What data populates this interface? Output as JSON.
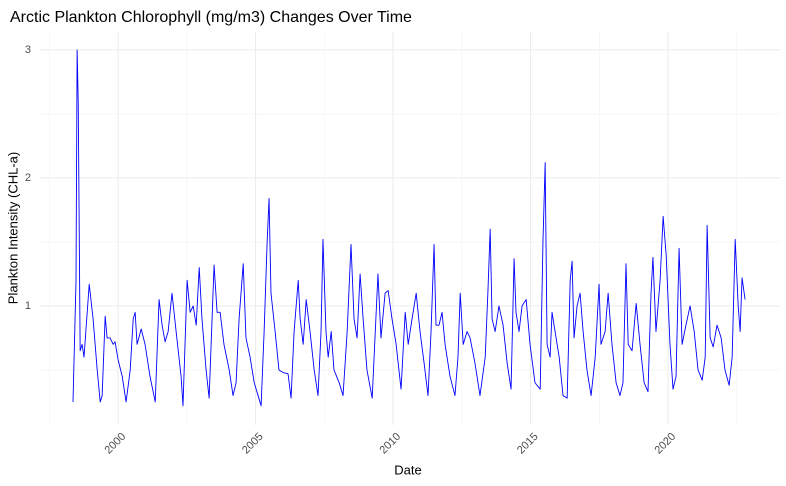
{
  "chart_data": {
    "type": "line",
    "title": "Arctic Plankton Chlorophyll (mg/m3) Changes Over Time",
    "x_label": "Date",
    "y_label": "Plankton Intensity (CHL-a)",
    "color": "#0000ff",
    "grid": true,
    "xlim": [
      1997.16,
      2024.07
    ],
    "xticks": [
      2000,
      2005,
      2010,
      2015,
      2020
    ],
    "x_minor_ticks": [
      1997.5,
      2002.5,
      2007.5,
      2012.5,
      2017.5,
      2022.5
    ],
    "ylim": [
      0.07,
      3.14
    ],
    "yticks": [
      1,
      2,
      3
    ],
    "y_minor_ticks": [
      0.5,
      1.5,
      2.5
    ],
    "x": [
      1998.36,
      1998.47,
      1998.51,
      1998.55,
      1998.62,
      1998.69,
      1998.76,
      1998.95,
      1999.09,
      1999.24,
      1999.35,
      1999.42,
      1999.53,
      1999.6,
      1999.71,
      1999.82,
      1999.89,
      2000,
      2000.15,
      2000.29,
      2000.44,
      2000.55,
      2000.62,
      2000.69,
      2000.84,
      2000.98,
      2001.16,
      2001.35,
      2001.49,
      2001.6,
      2001.71,
      2001.82,
      2001.96,
      2002.11,
      2002.29,
      2002.36,
      2002.51,
      2002.62,
      2002.73,
      2002.84,
      2002.95,
      2003.05,
      2003.2,
      2003.31,
      2003.49,
      2003.6,
      2003.71,
      2003.85,
      2004.04,
      2004.18,
      2004.29,
      2004.4,
      2004.55,
      2004.65,
      2004.8,
      2004.95,
      2005.09,
      2005.2,
      2005.31,
      2005.42,
      2005.49,
      2005.56,
      2005.71,
      2005.85,
      2006.0,
      2006.18,
      2006.29,
      2006.4,
      2006.55,
      2006.62,
      2006.73,
      2006.84,
      2006.98,
      2007.13,
      2007.27,
      2007.38,
      2007.45,
      2007.56,
      2007.64,
      2007.75,
      2007.85,
      2008.04,
      2008.18,
      2008.33,
      2008.47,
      2008.58,
      2008.69,
      2008.8,
      2008.91,
      2009.05,
      2009.24,
      2009.45,
      2009.56,
      2009.71,
      2009.82,
      2009.96,
      2010.11,
      2010.29,
      2010.44,
      2010.55,
      2010.69,
      2010.84,
      2010.98,
      2011.13,
      2011.27,
      2011.38,
      2011.49,
      2011.56,
      2011.67,
      2011.78,
      2011.89,
      2012.07,
      2012.25,
      2012.36,
      2012.44,
      2012.55,
      2012.69,
      2012.8,
      2012.98,
      2013.16,
      2013.35,
      2013.45,
      2013.53,
      2013.6,
      2013.71,
      2013.85,
      2014.0,
      2014.15,
      2014.29,
      2014.4,
      2014.47,
      2014.58,
      2014.69,
      2014.84,
      2014.98,
      2015.16,
      2015.35,
      2015.45,
      2015.53,
      2015.6,
      2015.71,
      2015.78,
      2015.89,
      2016.04,
      2016.18,
      2016.33,
      2016.44,
      2016.51,
      2016.58,
      2016.69,
      2016.8,
      2016.91,
      2017.05,
      2017.2,
      2017.35,
      2017.49,
      2017.56,
      2017.71,
      2017.82,
      2017.96,
      2018.11,
      2018.25,
      2018.36,
      2018.47,
      2018.55,
      2018.69,
      2018.84,
      2018.98,
      2019.13,
      2019.27,
      2019.38,
      2019.45,
      2019.56,
      2019.71,
      2019.82,
      2019.93,
      2020.07,
      2020.18,
      2020.29,
      2020.4,
      2020.51,
      2020.65,
      2020.8,
      2020.95,
      2021.09,
      2021.24,
      2021.35,
      2021.42,
      2021.53,
      2021.64,
      2021.78,
      2021.93,
      2022.07,
      2022.22,
      2022.33,
      2022.44,
      2022.55,
      2022.62,
      2022.69,
      2022.8
    ],
    "values": [
      0.25,
      1.2,
      3.0,
      2.6,
      0.65,
      0.7,
      0.6,
      1.17,
      0.9,
      0.5,
      0.25,
      0.3,
      0.92,
      0.75,
      0.75,
      0.7,
      0.72,
      0.58,
      0.45,
      0.25,
      0.5,
      0.9,
      0.95,
      0.7,
      0.82,
      0.7,
      0.45,
      0.25,
      1.05,
      0.85,
      0.72,
      0.8,
      1.1,
      0.8,
      0.45,
      0.22,
      1.2,
      0.95,
      1.0,
      0.85,
      1.3,
      0.9,
      0.5,
      0.28,
      1.32,
      0.95,
      0.95,
      0.7,
      0.5,
      0.3,
      0.4,
      0.9,
      1.33,
      0.75,
      0.6,
      0.4,
      0.3,
      0.22,
      0.8,
      1.5,
      1.84,
      1.1,
      0.8,
      0.5,
      0.48,
      0.47,
      0.28,
      0.8,
      1.2,
      0.9,
      0.7,
      1.05,
      0.8,
      0.5,
      0.3,
      0.8,
      1.52,
      0.8,
      0.6,
      0.8,
      0.5,
      0.4,
      0.3,
      0.8,
      1.48,
      0.9,
      0.75,
      1.25,
      0.9,
      0.5,
      0.28,
      1.25,
      0.75,
      1.1,
      1.12,
      0.9,
      0.7,
      0.35,
      0.95,
      0.7,
      0.9,
      1.1,
      0.8,
      0.55,
      0.3,
      0.8,
      1.48,
      0.85,
      0.85,
      0.95,
      0.7,
      0.45,
      0.3,
      0.6,
      1.1,
      0.7,
      0.8,
      0.75,
      0.55,
      0.3,
      0.6,
      1.12,
      1.6,
      0.9,
      0.8,
      1.0,
      0.85,
      0.55,
      0.35,
      1.37,
      0.95,
      0.8,
      1.0,
      1.05,
      0.7,
      0.4,
      0.35,
      1.5,
      2.12,
      0.7,
      0.6,
      0.95,
      0.8,
      0.6,
      0.3,
      0.28,
      1.2,
      1.35,
      0.75,
      1.0,
      1.1,
      0.8,
      0.5,
      0.3,
      0.6,
      1.17,
      0.7,
      0.8,
      1.1,
      0.7,
      0.4,
      0.3,
      0.4,
      1.33,
      0.7,
      0.65,
      1.02,
      0.7,
      0.4,
      0.33,
      1.1,
      1.38,
      0.8,
      1.2,
      1.7,
      1.4,
      0.7,
      0.35,
      0.45,
      1.45,
      0.7,
      0.85,
      1.0,
      0.8,
      0.5,
      0.42,
      0.6,
      1.63,
      0.75,
      0.68,
      0.85,
      0.75,
      0.5,
      0.38,
      0.6,
      1.52,
      1.0,
      0.8,
      1.22,
      1.05
    ]
  }
}
